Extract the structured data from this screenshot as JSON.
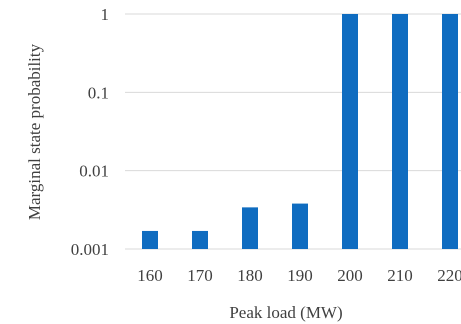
{
  "chart_data": {
    "type": "bar",
    "title": "",
    "xlabel": "Peak load (MW)",
    "ylabel": "Marginal state probability",
    "categories": [
      "160",
      "170",
      "180",
      "190",
      "200",
      "210",
      "220"
    ],
    "values": [
      0.0017,
      0.0017,
      0.0034,
      0.0038,
      1,
      1,
      1
    ],
    "y_scale": "log",
    "ylim": [
      0.001,
      1
    ],
    "y_ticks": [
      {
        "value": 0.001,
        "label": "0.001"
      },
      {
        "value": 0.01,
        "label": "0.01"
      },
      {
        "value": 0.1,
        "label": "0.1"
      },
      {
        "value": 1,
        "label": "1"
      }
    ],
    "grid": true,
    "legend": "none",
    "bar_color": "#0f6cc0"
  }
}
